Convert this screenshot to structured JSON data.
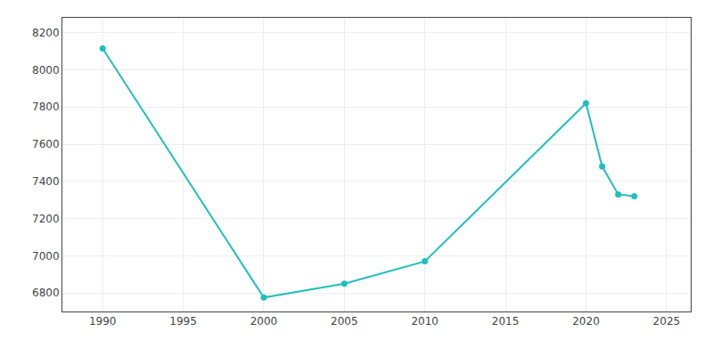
{
  "chart_data": {
    "type": "line",
    "x": [
      1990,
      2000,
      2005,
      2010,
      2020,
      2021,
      2022,
      2023
    ],
    "values": [
      8115,
      6775,
      6850,
      6970,
      7820,
      7480,
      7330,
      7320
    ],
    "color": "#20BFBF",
    "marker": "circle",
    "xlim": [
      1987.5,
      2026.5
    ],
    "ylim": [
      6700,
      8280
    ],
    "xticks": [
      1990,
      1995,
      2000,
      2005,
      2010,
      2015,
      2020,
      2025
    ],
    "yticks": [
      6800,
      7000,
      7200,
      7400,
      7600,
      7800,
      8000,
      8200
    ],
    "grid": true
  }
}
